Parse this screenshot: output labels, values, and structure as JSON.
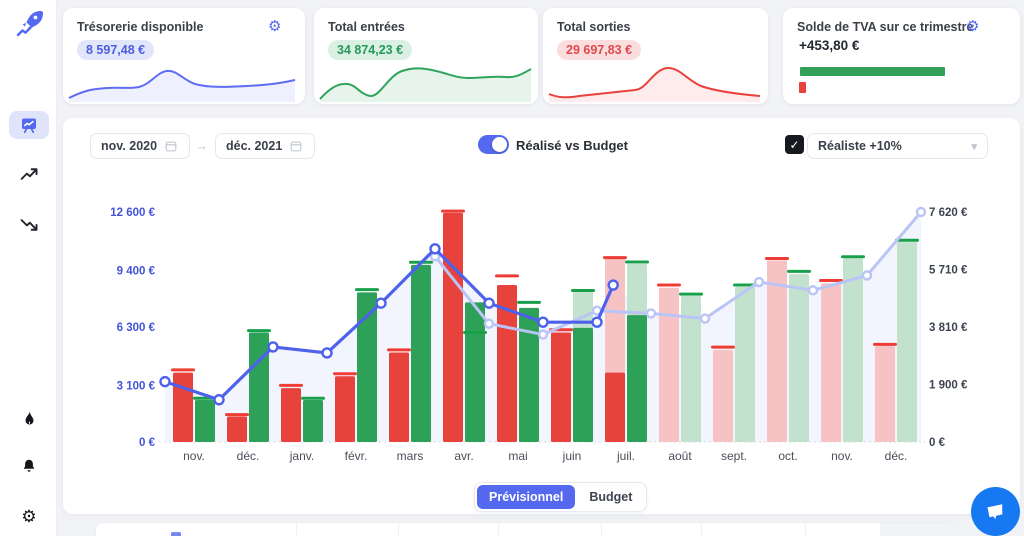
{
  "sidebar": {
    "logo_icon": "rocket-logo-icon",
    "items": [
      {
        "icon": "dashboard-chart-icon",
        "active": true
      },
      {
        "icon": "trending-up-icon",
        "active": false
      },
      {
        "icon": "trending-down-icon",
        "active": false
      },
      {
        "icon": "flame-icon",
        "active": false
      },
      {
        "icon": "bell-icon",
        "active": false
      },
      {
        "icon": "gear-icon",
        "active": false
      }
    ]
  },
  "cards": [
    {
      "title": "Trésorerie disponible",
      "value": "8 597,48 €",
      "color": "#5468f0",
      "has_settings": true
    },
    {
      "title": "Total entrées",
      "value": "34 874,23 €",
      "color": "#2fa45c",
      "has_settings": false
    },
    {
      "title": "Total sorties",
      "value": "29 697,83 €",
      "color": "#e8423d",
      "has_settings": false
    },
    {
      "title": "Solde de TVA sur ce trimestre",
      "value": "+453,80 €",
      "color": "#23272f",
      "has_settings": true
    }
  ],
  "controls": {
    "date_from": "nov. 2020",
    "date_to": "déc. 2021",
    "arrow": "→",
    "toggle_label": "Réalisé vs Budget",
    "toggle_on": true,
    "checkbox_checked": true,
    "checkbox_glyph": "✓",
    "scenario_selected": "Réaliste +10%"
  },
  "chart_data": {
    "type": "bar",
    "subtype": "combo-bar-line-dual-axis",
    "categories": [
      "nov.",
      "déc.",
      "janv.",
      "févr.",
      "mars",
      "avr.",
      "mai",
      "juin",
      "juil.",
      "août",
      "sept.",
      "oct.",
      "nov.",
      "déc."
    ],
    "left_axis": {
      "ticks": [
        "0 €",
        "3 100 €",
        "6 300 €",
        "9 400 €",
        "12 600 €"
      ],
      "values": [
        0,
        3100,
        6300,
        9400,
        12600
      ],
      "max": 12600
    },
    "right_axis": {
      "ticks": [
        "0 €",
        "1 900 €",
        "3 810 €",
        "5 710 €",
        "7 620 €"
      ],
      "values": [
        0,
        1900,
        3810,
        5710,
        7620
      ],
      "max": 7620
    },
    "series": {
      "sorties_realise": [
        3800,
        1400,
        2950,
        3600,
        4900,
        12550,
        8600,
        6000,
        3800,
        null,
        null,
        null,
        null,
        null
      ],
      "sorties_previsionnel": [
        null,
        null,
        null,
        null,
        null,
        null,
        null,
        null,
        10050,
        8450,
        5050,
        9950,
        8700,
        5250
      ],
      "sorties_budget": [
        3950,
        1500,
        3100,
        3740,
        5050,
        12650,
        9100,
        6150,
        10100,
        8600,
        5200,
        10050,
        8850,
        5350
      ],
      "entrees_realise": [
        2300,
        6000,
        2300,
        8200,
        9700,
        7650,
        7350,
        6250,
        6950,
        null,
        null,
        null,
        null,
        null
      ],
      "entrees_previsionnel": [
        null,
        null,
        null,
        null,
        null,
        null,
        null,
        8300,
        9750,
        8000,
        8500,
        9200,
        10050,
        10950
      ],
      "entrees_budget": [
        2400,
        6100,
        2400,
        8350,
        9850,
        6000,
        7650,
        8300,
        9860,
        8100,
        8600,
        9350,
        10150,
        11050
      ],
      "tresorerie_realise_line": {
        "x": [
          0,
          1,
          2,
          3,
          4,
          5,
          6,
          7,
          8,
          8.3
        ],
        "values": [
          2000,
          1400,
          3150,
          2950,
          4600,
          6400,
          4600,
          3970,
          3970,
          5200
        ]
      },
      "tresorerie_previsionnel_line": {
        "x": [
          5,
          6,
          7,
          8,
          9,
          10,
          11,
          12,
          13,
          14
        ],
        "values": [
          6150,
          3920,
          3560,
          4350,
          4260,
          4090,
          5300,
          5025,
          5520,
          7620
        ]
      }
    },
    "colors": {
      "sorties_realise": "#e8423d",
      "sorties_previsionnel": "#f6c2c4",
      "sorties_budget_marker": "#ef3d35",
      "entrees_realise": "#2ea158",
      "entrees_previsionnel": "#c2e2cd",
      "entrees_budget_marker": "#18a04b",
      "line_realise": "#4d61ea",
      "line_previsionnel": "#b9c4f7",
      "left_axis_text": "#4353d9",
      "right_axis_text": "#3d4350"
    },
    "legend_position": "none",
    "grid": "baseline-dotted-only"
  },
  "footer": {
    "primary_label": "Prévisionnel",
    "secondary_label": "Budget"
  }
}
